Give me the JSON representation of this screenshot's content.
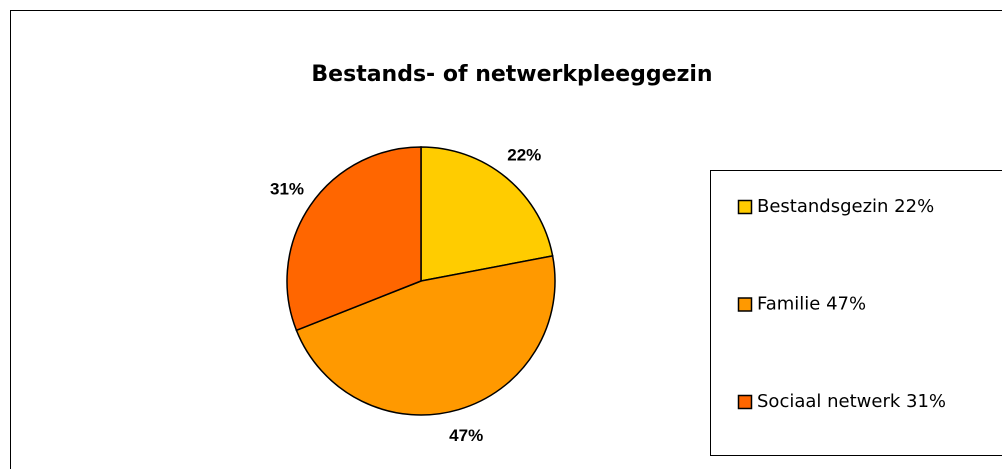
{
  "chart_data": {
    "type": "pie",
    "title": "Bestands- of netwerkpleeggezin",
    "categories": [
      "Bestandsgezin 22%",
      "Familie 47%",
      "Sociaal netwerk 31%"
    ],
    "values": [
      22,
      47,
      31
    ],
    "value_labels": [
      "22%",
      "47%",
      "31%"
    ],
    "colors": [
      "#FFCC00",
      "#FF9900",
      "#FF6600"
    ],
    "legend": "right"
  }
}
